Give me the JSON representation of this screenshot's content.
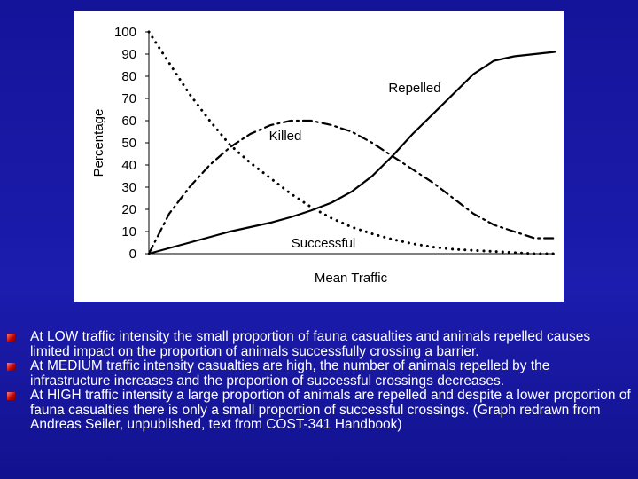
{
  "chart_data": {
    "type": "line",
    "xlabel": "Mean Traffic",
    "ylabel": "Percentage",
    "x": [
      0,
      1,
      2,
      3,
      4,
      5,
      6,
      7,
      8,
      9,
      10,
      11,
      12,
      13,
      14,
      15,
      16,
      17,
      18,
      19,
      20
    ],
    "xlim": [
      0,
      20
    ],
    "ylim": [
      0,
      100
    ],
    "yticks": [
      0,
      10,
      20,
      30,
      40,
      50,
      60,
      70,
      80,
      90,
      100
    ],
    "series": [
      {
        "name": "Repelled",
        "color": "#000000",
        "style": "solid",
        "values": [
          0,
          2.5,
          5,
          7.5,
          10,
          12,
          14,
          16.5,
          19.5,
          23,
          28,
          35,
          44,
          54,
          63,
          72,
          81,
          87,
          89,
          90,
          91
        ]
      },
      {
        "name": "Killed",
        "color": "#000000",
        "style": "dashdot",
        "values": [
          0,
          18,
          30,
          40,
          48,
          54,
          58,
          60,
          60,
          58,
          55,
          50,
          44,
          38,
          32,
          25,
          18,
          13,
          10,
          7,
          7
        ]
      },
      {
        "name": "Successful",
        "color": "#000000",
        "style": "dotted",
        "values": [
          100,
          86,
          72,
          60,
          49,
          41,
          34,
          27,
          21,
          16,
          12,
          9,
          6.5,
          4.5,
          3,
          2,
          1.5,
          1,
          0.5,
          0,
          0
        ]
      }
    ]
  },
  "bullets": [
    "At LOW traffic intensity the small proportion of fauna casualties and animals repelled causes limited impact on the proportion of animals successfully crossing a barrier.",
    "At MEDIUM traffic intensity casualties are high, the number of animals repelled by the infrastructure increases and the proportion of successful crossings decreases.",
    "At HIGH traffic intensity a large proportion of animals are repelled and despite a lower proportion of fauna casualties there is only a small proportion of successful crossings. (Graph redrawn from Andreas Seiler, unpublished, text from COST-341 Handbook)"
  ]
}
